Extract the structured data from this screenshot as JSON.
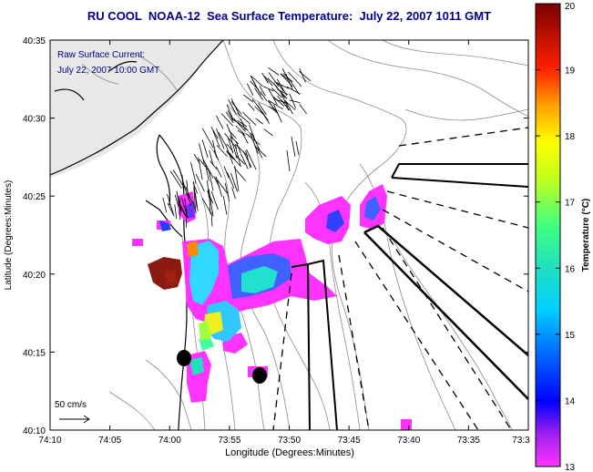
{
  "title": "RU COOL  NOAA-12  Sea Surface Temperature:  July 22, 2007 1011 GMT",
  "annotation": {
    "line1": "Raw Surface Current:",
    "line2": "July 22, 2007 10:00 GMT"
  },
  "axes": {
    "xlabel": "Longitude (Degrees:Minutes)",
    "ylabel": "Latitude (Degrees:Minutes)",
    "xticks": [
      "74:10",
      "74:05",
      "74:00",
      "73:55",
      "73:50",
      "73:45",
      "73:40",
      "73:35",
      "73:3"
    ],
    "yticks": [
      "40:35",
      "40:30",
      "40:25",
      "40:20",
      "40:15",
      "40:10"
    ]
  },
  "scale": {
    "label": "50 cm/s"
  },
  "colorbar": {
    "label": "Temperature (°C)",
    "ticks": [
      "20",
      "19",
      "18",
      "17",
      "16",
      "15",
      "14",
      "13"
    ],
    "min": 13,
    "max": 20
  },
  "colors": {
    "title": "#00008b",
    "annotation": "#00008b",
    "land_outline": "#000000",
    "bathymetry": "#8c8c8c"
  }
}
